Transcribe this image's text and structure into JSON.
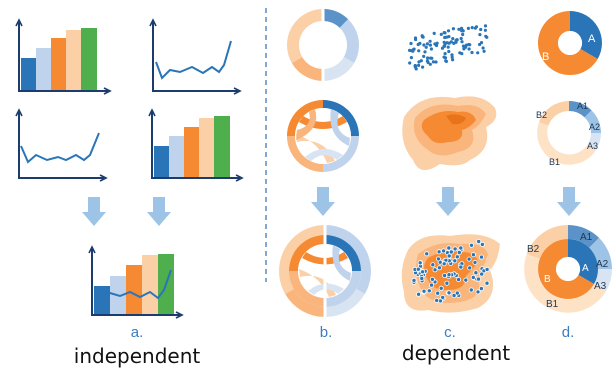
{
  "colors": {
    "dark_blue": "#2a75b8",
    "light_blue": "#bfd3ec",
    "pale_blue": "#d9e4f3",
    "orange": "#f58a32",
    "light_orange": "#f9b57c",
    "peach": "#fbd0a6",
    "pale_peach": "#fde2c6",
    "green": "#4faf4d",
    "arrow": "#9dc3e6",
    "axis": "#1c3b6e",
    "divider": "#2e6fb2",
    "label_blue": "#3b7ec0"
  },
  "labels": {
    "a": "a.",
    "b": "b.",
    "c": "c.",
    "d": "d.",
    "independent": "independent",
    "dependent": "dependent"
  },
  "donut_labels": {
    "small_a": "A",
    "small_b": "B",
    "ring_a1": "A1",
    "ring_a2": "A2",
    "ring_a3": "A3",
    "ring_b1": "B1",
    "ring_b2": "B2"
  },
  "icons": {
    "arrow": "down-arrow-icon",
    "bar_chart": "bar-chart-icon",
    "line_chart": "line-chart-icon",
    "donut": "donut-chart-icon",
    "chord": "chord-diagram-icon",
    "scatter": "scatter-plot-icon",
    "density": "density-map-icon"
  }
}
